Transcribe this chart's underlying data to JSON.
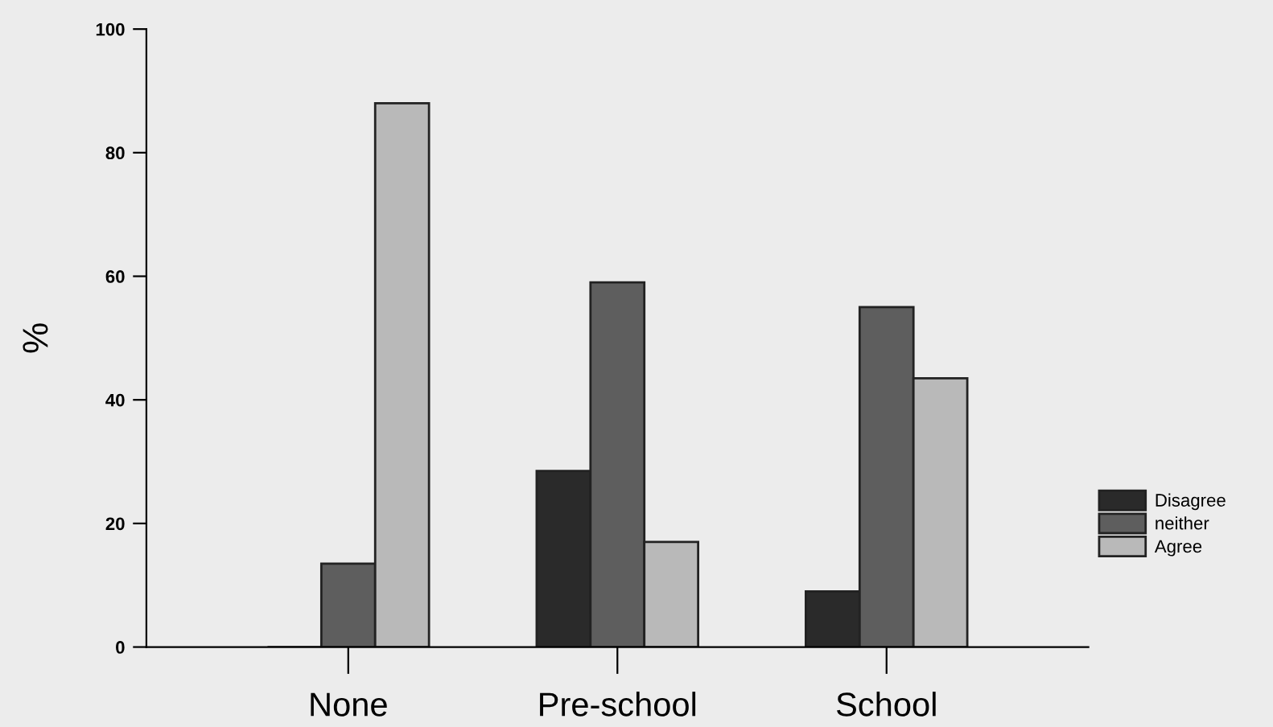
{
  "chart_data": {
    "type": "bar",
    "ylabel": "%",
    "categories": [
      "None",
      "Pre-school",
      "School"
    ],
    "series": [
      {
        "name": "Disagree",
        "color": "#2a2a2a",
        "values": [
          0,
          28.5,
          9
        ]
      },
      {
        "name": "neither",
        "color": "#5e5e5e",
        "values": [
          13.5,
          59,
          55
        ]
      },
      {
        "name": "Agree",
        "color": "#b9b9b9",
        "values": [
          88,
          17,
          43.5
        ]
      }
    ],
    "ylim": [
      0,
      100
    ],
    "yticks": [
      0,
      20,
      40,
      60,
      80,
      100
    ],
    "grid": false,
    "legend": "right"
  }
}
